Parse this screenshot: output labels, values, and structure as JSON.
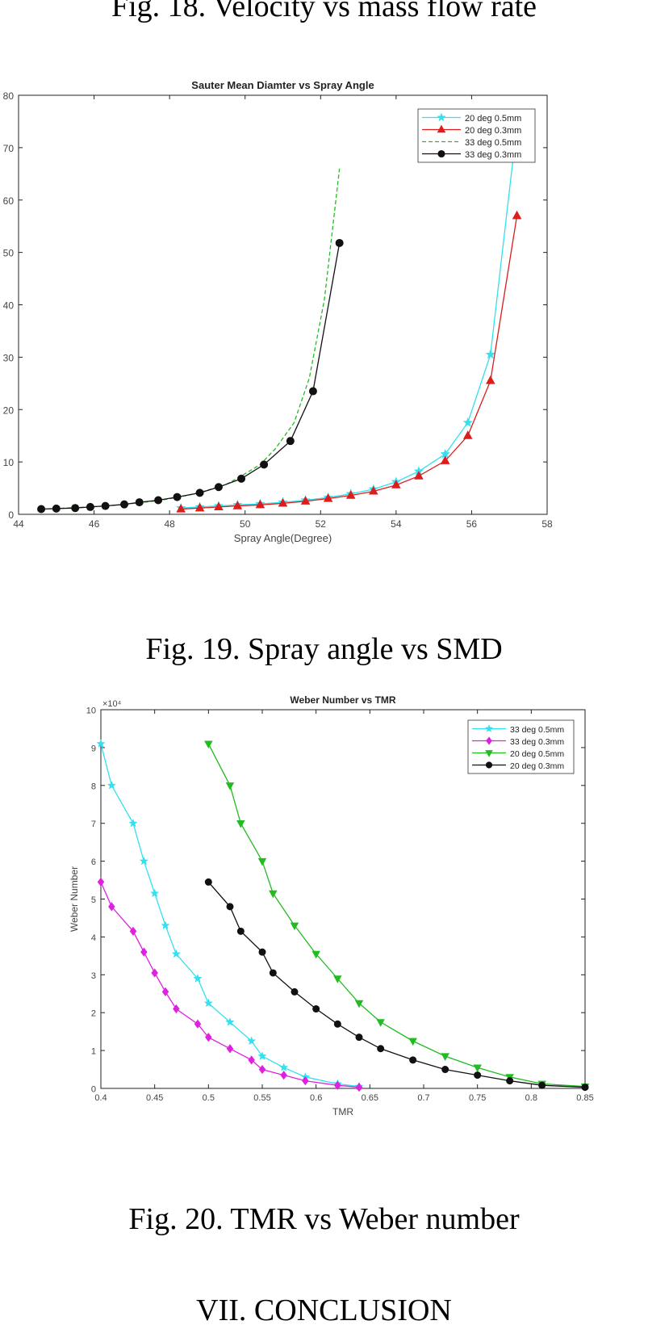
{
  "captions": {
    "fig18": "Fig. 18.  Velocity vs mass flow rate",
    "fig19": "Fig. 19.  Spray angle vs SMD",
    "fig20": "Fig. 20.  TMR vs Weber number",
    "section": "VII.    CONCLUSION"
  },
  "chart_data": [
    {
      "type": "line",
      "title": "Sauter Mean Diamter vs Spray Angle",
      "xlabel": "Spray Angle(Degree)",
      "ylabel": "",
      "xlim": [
        44,
        58
      ],
      "ylim": [
        0,
        80
      ],
      "xticks": [
        44,
        46,
        48,
        50,
        52,
        54,
        56,
        58
      ],
      "yticks": [
        0,
        10,
        20,
        30,
        40,
        50,
        60,
        70,
        80
      ],
      "ytick_labels": [
        "0",
        "10",
        "20",
        "30",
        "40",
        "50",
        "60",
        "70",
        "80"
      ],
      "legend_position": "top-right",
      "series": [
        {
          "name": "20 deg 0.5mm",
          "color": "#33e0ee",
          "marker": "star",
          "dash": "solid",
          "x": [
            48.3,
            48.8,
            49.3,
            49.8,
            50.4,
            51.0,
            51.6,
            52.2,
            52.8,
            53.4,
            54.0,
            54.6,
            55.3,
            55.9,
            56.5,
            57.1
          ],
          "y": [
            1.2,
            1.4,
            1.6,
            1.8,
            2.0,
            2.3,
            2.7,
            3.2,
            3.9,
            4.8,
            6.2,
            8.2,
            11.5,
            17.5,
            30.5,
            68
          ]
        },
        {
          "name": "20 deg 0.3mm",
          "color": "#dd1c1c",
          "marker": "triangle",
          "dash": "solid",
          "x": [
            48.3,
            48.8,
            49.3,
            49.8,
            50.4,
            51.0,
            51.6,
            52.2,
            52.8,
            53.4,
            54.0,
            54.6,
            55.3,
            55.9,
            56.5,
            57.2
          ],
          "y": [
            1.0,
            1.2,
            1.4,
            1.6,
            1.8,
            2.1,
            2.5,
            3.0,
            3.6,
            4.4,
            5.6,
            7.3,
            10.2,
            15.0,
            25.5,
            57
          ]
        },
        {
          "name": "33 deg 0.5mm",
          "color": "#22bb22",
          "marker": "none",
          "dash": "dashed",
          "x": [
            44.6,
            45.0,
            45.5,
            45.9,
            46.3,
            46.8,
            47.2,
            47.7,
            48.1,
            48.6,
            49.0,
            49.5,
            49.9,
            50.4,
            50.8,
            51.3,
            51.7,
            52.1,
            52.5
          ],
          "y": [
            1.0,
            1.1,
            1.3,
            1.4,
            1.6,
            1.9,
            2.2,
            2.6,
            3.1,
            3.8,
            4.6,
            5.7,
            7.3,
            9.5,
            12.5,
            17.5,
            26,
            41,
            66
          ]
        },
        {
          "name": "33 deg 0.3mm",
          "color": "#111111",
          "marker": "circle",
          "dash": "solid",
          "x": [
            44.6,
            45.0,
            45.5,
            45.9,
            46.3,
            46.8,
            47.2,
            47.7,
            48.2,
            48.8,
            49.3,
            49.9,
            50.5,
            51.2,
            51.8,
            52.5
          ],
          "y": [
            1.0,
            1.1,
            1.2,
            1.4,
            1.6,
            1.9,
            2.3,
            2.7,
            3.3,
            4.1,
            5.2,
            6.8,
            9.5,
            14.0,
            23.5,
            51.8
          ]
        }
      ]
    },
    {
      "type": "line",
      "title": "Weber Number vs TMR",
      "xlabel": "TMR",
      "ylabel": "Weber Number",
      "exponent_label": "×10⁴",
      "xlim": [
        0.4,
        0.85
      ],
      "ylim": [
        0,
        10
      ],
      "xticks": [
        0.4,
        0.45,
        0.5,
        0.55,
        0.6,
        0.65,
        0.7,
        0.75,
        0.8,
        0.85
      ],
      "xtick_labels": [
        "0.4",
        "0.45",
        "0.5",
        "0.55",
        "0.6",
        "0.65",
        "0.7",
        "0.75",
        "0.8",
        "0.85"
      ],
      "yticks": [
        0,
        1,
        2,
        3,
        4,
        5,
        6,
        7,
        8,
        9,
        10
      ],
      "ytick_labels": [
        "0",
        "1",
        "2",
        "3",
        "4",
        "5",
        "6",
        "7",
        "8",
        "9",
        "10"
      ],
      "legend_position": "top-right",
      "series": [
        {
          "name": "33 deg 0.5mm",
          "color": "#33e0ee",
          "marker": "star",
          "dash": "solid",
          "x": [
            0.4,
            0.41,
            0.43,
            0.44,
            0.45,
            0.46,
            0.47,
            0.49,
            0.5,
            0.52,
            0.54,
            0.55,
            0.57,
            0.59,
            0.62,
            0.64
          ],
          "y": [
            9.1,
            8.0,
            7.0,
            6.0,
            5.15,
            4.3,
            3.55,
            2.9,
            2.25,
            1.75,
            1.25,
            0.85,
            0.55,
            0.3,
            0.12,
            0.05
          ]
        },
        {
          "name": "33 deg 0.3mm",
          "color": "#e020e0",
          "marker": "diamond",
          "dash": "solid",
          "x": [
            0.4,
            0.41,
            0.43,
            0.44,
            0.45,
            0.46,
            0.47,
            0.49,
            0.5,
            0.52,
            0.54,
            0.55,
            0.57,
            0.59,
            0.62,
            0.64
          ],
          "y": [
            5.45,
            4.8,
            4.15,
            3.6,
            3.05,
            2.55,
            2.1,
            1.7,
            1.35,
            1.05,
            0.75,
            0.5,
            0.35,
            0.2,
            0.08,
            0.03
          ]
        },
        {
          "name": "20 deg 0.5mm",
          "color": "#22bb22",
          "marker": "triangle-down",
          "dash": "solid",
          "x": [
            0.5,
            0.52,
            0.53,
            0.55,
            0.56,
            0.58,
            0.6,
            0.62,
            0.64,
            0.66,
            0.69,
            0.72,
            0.75,
            0.78,
            0.81,
            0.85
          ],
          "y": [
            9.1,
            8.0,
            7.0,
            6.0,
            5.15,
            4.3,
            3.55,
            2.9,
            2.25,
            1.75,
            1.25,
            0.85,
            0.55,
            0.3,
            0.12,
            0.05
          ]
        },
        {
          "name": "20 deg 0.3mm",
          "color": "#111111",
          "marker": "circle",
          "dash": "solid",
          "x": [
            0.5,
            0.52,
            0.53,
            0.55,
            0.56,
            0.58,
            0.6,
            0.62,
            0.64,
            0.66,
            0.69,
            0.72,
            0.75,
            0.78,
            0.81,
            0.85
          ],
          "y": [
            5.45,
            4.8,
            4.15,
            3.6,
            3.05,
            2.55,
            2.1,
            1.7,
            1.35,
            1.05,
            0.75,
            0.5,
            0.35,
            0.2,
            0.08,
            0.03
          ]
        }
      ]
    }
  ]
}
